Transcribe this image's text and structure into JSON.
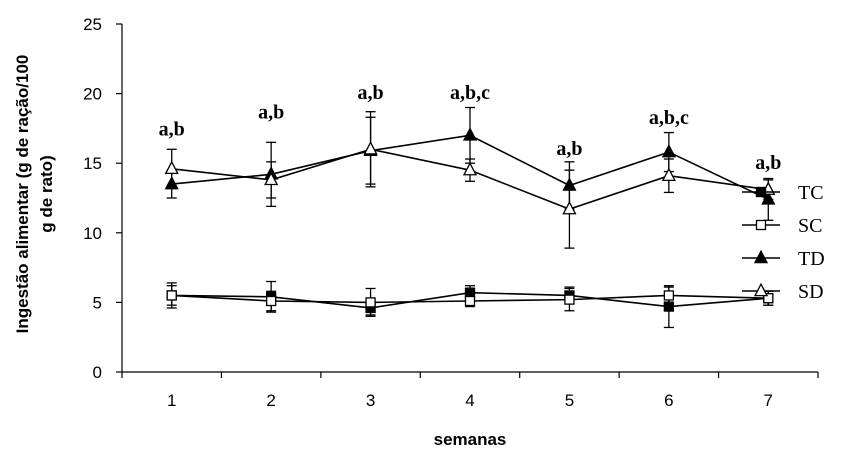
{
  "chart_data": {
    "type": "line",
    "title": "",
    "xlabel": "semanas",
    "ylabel_lines": [
      "Ingestão alimentar (g de ração/100",
      "g de rato)"
    ],
    "x": [
      1,
      2,
      3,
      4,
      5,
      6,
      7
    ],
    "xlim": [
      0.5,
      7.5
    ],
    "ylim": [
      0,
      25
    ],
    "yticks": [
      0,
      5,
      10,
      15,
      20,
      25
    ],
    "grid": false,
    "legend_position": "right",
    "series": [
      {
        "name": "TC",
        "marker": "square-filled",
        "values": [
          5.5,
          5.4,
          4.6,
          5.7,
          5.5,
          4.7,
          5.3
        ],
        "errors": [
          0.9,
          1.1,
          0.5,
          0.5,
          0.6,
          1.5,
          0.5
        ]
      },
      {
        "name": "SC",
        "marker": "square-open",
        "values": [
          5.5,
          5.1,
          5.0,
          5.1,
          5.2,
          5.5,
          5.3
        ],
        "errors": [
          0.7,
          0.7,
          1.0,
          0.4,
          0.8,
          0.6,
          0.5
        ]
      },
      {
        "name": "TD",
        "marker": "triangle-filled",
        "values": [
          13.5,
          14.2,
          15.9,
          17.0,
          13.4,
          15.8,
          12.4
        ],
        "errors": [
          1.0,
          2.3,
          2.4,
          2.0,
          1.7,
          1.4,
          1.5
        ]
      },
      {
        "name": "SD",
        "marker": "triangle-open",
        "values": [
          14.6,
          13.8,
          16.0,
          14.5,
          11.7,
          14.1,
          13.1
        ],
        "errors": [
          1.4,
          1.3,
          2.7,
          0.8,
          2.8,
          1.2,
          0.7
        ]
      }
    ],
    "annotations": [
      {
        "x": 1,
        "y": 17.0,
        "text": "a,b"
      },
      {
        "x": 2,
        "y": 18.2,
        "text": "a,b"
      },
      {
        "x": 3,
        "y": 19.6,
        "text": "a,b"
      },
      {
        "x": 4,
        "y": 19.6,
        "text": "a,b,c"
      },
      {
        "x": 5,
        "y": 15.6,
        "text": "a,b"
      },
      {
        "x": 6,
        "y": 17.8,
        "text": "a,b,c"
      },
      {
        "x": 7,
        "y": 14.6,
        "text": "a,b"
      }
    ]
  }
}
